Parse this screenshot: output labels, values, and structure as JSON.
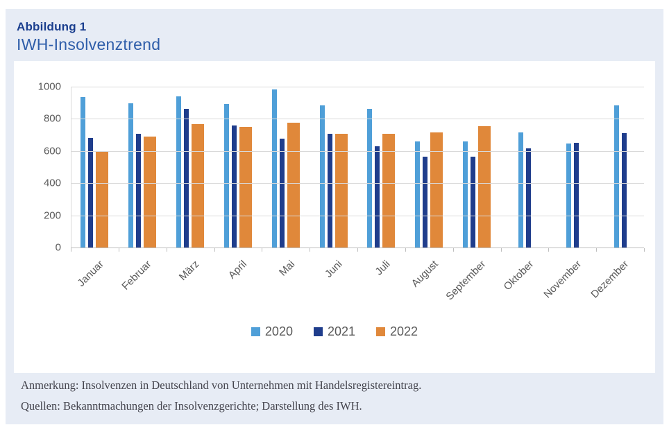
{
  "header": {
    "label": "Abbildung 1",
    "title": "IWH-Insolvenztrend"
  },
  "chart_data": {
    "type": "bar",
    "title": "IWH-Insolvenztrend",
    "categories": [
      "Januar",
      "Februar",
      "März",
      "April",
      "Mai",
      "Juni",
      "Juli",
      "August",
      "September",
      "Oktober",
      "November",
      "Dezember"
    ],
    "series": [
      {
        "name": "2020",
        "color": "#4f9fd8",
        "values": [
          940,
          900,
          945,
          895,
          985,
          890,
          865,
          665,
          665,
          720,
          650,
          890
        ]
      },
      {
        "name": "2021",
        "color": "#1f3d8c",
        "values": [
          685,
          710,
          865,
          765,
          680,
          710,
          635,
          570,
          570,
          620,
          655,
          715
        ]
      },
      {
        "name": "2022",
        "color": "#e0883a",
        "values": [
          600,
          695,
          770,
          755,
          780,
          710,
          710,
          720,
          760,
          null,
          null,
          null
        ]
      }
    ],
    "xlabel": "",
    "ylabel": "",
    "ylim": [
      0,
      1000
    ],
    "ytick_step": 200,
    "grid": true,
    "legend_position": "bottom"
  },
  "notes": {
    "line1": "Anmerkung: Insolvenzen in Deutschland von Unternehmen mit Handelsregistereintrag.",
    "line2": "Quellen: Bekanntmachungen der Insolvenzgerichte; Darstellung des IWH."
  },
  "colors": {
    "panel_background": "#e7ecf5",
    "card_background": "#ffffff",
    "figure_label": "#1a3e8e",
    "figure_title": "#2e5da9",
    "axis_text": "#595959",
    "gridline": "#d9d9d9"
  }
}
